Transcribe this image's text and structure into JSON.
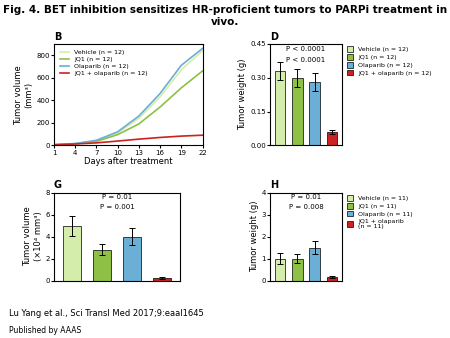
{
  "title": "Fig. 4. BET inhibition sensitizes HR-proficient tumors to PARPi treatment in vivo.",
  "annotations": [
    "Lu Yang et al., Sci Transl Med 2017;9:eaal1645",
    "Published by AAAS"
  ],
  "chart_data": [
    {
      "type": "line",
      "title": "B",
      "x": [
        1,
        4,
        7,
        10,
        13,
        16,
        19,
        22
      ],
      "series": [
        {
          "name": "Vehicle (n = 12)",
          "color": "#d4edaa",
          "values": [
            5,
            15,
            40,
            110,
            240,
            430,
            670,
            840
          ]
        },
        {
          "name": "JQ1 (n = 12)",
          "color": "#8dc044",
          "values": [
            5,
            14,
            35,
            95,
            190,
            340,
            510,
            660
          ]
        },
        {
          "name": "Olaparib (n = 12)",
          "color": "#6baed6",
          "values": [
            5,
            16,
            45,
            120,
            260,
            460,
            710,
            860
          ]
        },
        {
          "name": "JQ1 + olaparib (n = 12)",
          "color": "#cc2222",
          "values": [
            5,
            12,
            22,
            38,
            55,
            70,
            82,
            90
          ]
        }
      ],
      "xlabel": "Days after treatment",
      "ylabel": "Tumor volume\n(mm³)",
      "xlim": [
        1,
        22
      ],
      "ylim": [
        0,
        900
      ],
      "xticks": [
        1,
        4,
        7,
        10,
        13,
        16,
        19,
        22
      ],
      "yticks": [
        0,
        200,
        400,
        600,
        800
      ],
      "legend": "upper left"
    },
    {
      "type": "bar",
      "title": "D",
      "categories": [
        null,
        null,
        null,
        null
      ],
      "values": [
        0.33,
        0.3,
        0.28,
        0.06
      ],
      "errors": [
        0.04,
        0.04,
        0.04,
        0.01
      ],
      "colors": [
        "#d4edaa",
        "#8dc044",
        "#6baed6",
        "#cc2222"
      ],
      "legend_labels": [
        "Vehicle (n = 12)",
        "JQ1 (n = 12)",
        "Olaparib (n = 12)",
        "JQ1 + olaparib (n = 12)"
      ],
      "ylabel": "Tumor weight (g)",
      "ylim": [
        0.0,
        0.45
      ],
      "yticks": [
        {
          "value": 0.0,
          "label": "0.00"
        },
        {
          "value": 0.15,
          "label": "0.15"
        },
        {
          "value": 0.3,
          "label": "0.30"
        },
        {
          "value": 0.45,
          "label": "0.45"
        }
      ],
      "annotations": [
        "P < 0.0001",
        "P < 0.0001"
      ],
      "tick_labels": "y"
    },
    {
      "type": "bar",
      "title": "G",
      "categories": [
        null,
        null,
        null,
        null
      ],
      "values": [
        5.0,
        2.8,
        4.0,
        0.25
      ],
      "errors": [
        0.9,
        0.5,
        0.8,
        0.08
      ],
      "colors": [
        "#d4edaa",
        "#8dc044",
        "#6baed6",
        "#cc2222"
      ],
      "ylabel": "Tumor volume\n(×10⁴ mm³)",
      "ylim": [
        0,
        8
      ],
      "yticks": [
        0,
        2,
        4,
        6,
        8
      ],
      "annotations": [
        "P = 0.01",
        "P = 0.001"
      ],
      "tick_labels": "y"
    },
    {
      "type": "bar",
      "title": "H",
      "categories": [
        null,
        null,
        null,
        null
      ],
      "values": [
        1.0,
        1.0,
        1.5,
        0.15
      ],
      "errors": [
        0.25,
        0.2,
        0.3,
        0.05
      ],
      "colors": [
        "#d4edaa",
        "#8dc044",
        "#6baed6",
        "#cc2222"
      ],
      "legend_labels": [
        "Vehicle (n = 11)",
        "JQ1 (n = 11)",
        "Olaparib (n = 11)",
        "JQ1 + olaparib\n(n = 11)"
      ],
      "ylabel": "Tumor weight (g)",
      "ylim": [
        0,
        4
      ],
      "yticks": [
        0,
        1,
        2,
        3,
        4
      ],
      "annotations": [
        "P = 0.01",
        "P = 0.008"
      ],
      "tick_labels": "y"
    }
  ]
}
